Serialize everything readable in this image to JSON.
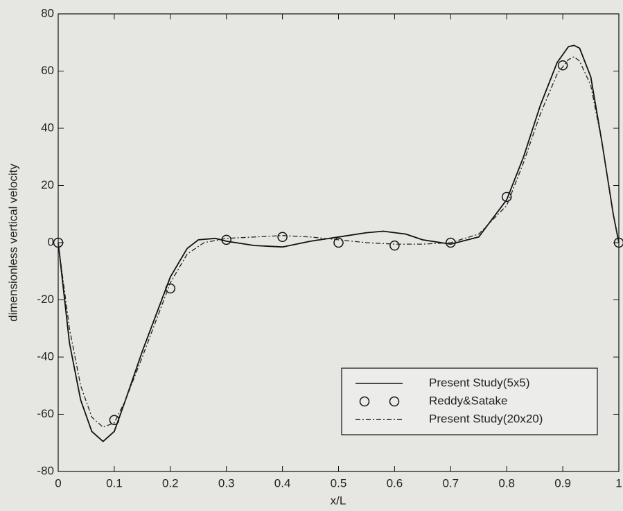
{
  "chart_data": {
    "type": "line",
    "xlabel": "x/L",
    "ylabel": "dimensionless vertical velocity",
    "xlim": [
      0,
      1
    ],
    "ylim": [
      -80,
      80
    ],
    "xticks": [
      0,
      0.1,
      0.2,
      0.3,
      0.4,
      0.5,
      0.6,
      0.7,
      0.8,
      0.9,
      1
    ],
    "yticks": [
      -80,
      -60,
      -40,
      -20,
      0,
      20,
      40,
      60,
      80
    ],
    "legend": "lower right",
    "series": [
      {
        "name": "Present Study(5x5)",
        "color": "#111111",
        "style": "solid",
        "x": [
          0,
          0.02,
          0.04,
          0.06,
          0.08,
          0.1,
          0.12,
          0.15,
          0.2,
          0.23,
          0.25,
          0.28,
          0.3,
          0.35,
          0.4,
          0.45,
          0.5,
          0.55,
          0.58,
          0.62,
          0.65,
          0.7,
          0.75,
          0.8,
          0.83,
          0.86,
          0.89,
          0.91,
          0.92,
          0.93,
          0.95,
          0.97,
          0.99,
          1
        ],
        "values": [
          0,
          -35,
          -55,
          -66,
          -69.5,
          -66,
          -55,
          -38,
          -12,
          -2,
          1,
          1.5,
          0.5,
          -1,
          -1.5,
          0.5,
          2,
          3.5,
          4,
          3,
          1,
          -0.5,
          2,
          15,
          30,
          48,
          63,
          68.5,
          69,
          68,
          58,
          35,
          10,
          0
        ]
      },
      {
        "name": "Reddy&Satake",
        "color": "#111111",
        "style": "circle",
        "x": [
          0,
          0.1,
          0.2,
          0.3,
          0.4,
          0.5,
          0.6,
          0.7,
          0.8,
          0.9,
          1
        ],
        "values": [
          0,
          -62,
          -16,
          1,
          2,
          0,
          -1,
          0,
          16,
          62,
          0
        ]
      },
      {
        "name": "Present Study(20x20)",
        "color": "#222222",
        "style": "dashdot",
        "x": [
          0,
          0.02,
          0.04,
          0.06,
          0.08,
          0.1,
          0.12,
          0.15,
          0.2,
          0.23,
          0.26,
          0.3,
          0.35,
          0.4,
          0.45,
          0.5,
          0.55,
          0.6,
          0.65,
          0.7,
          0.75,
          0.8,
          0.83,
          0.86,
          0.89,
          0.91,
          0.92,
          0.93,
          0.95,
          0.97,
          0.99,
          1
        ],
        "values": [
          0,
          -30,
          -50,
          -61,
          -64.5,
          -63,
          -55,
          -40,
          -14,
          -4,
          0,
          1.5,
          2,
          2.5,
          2,
          1,
          0,
          -0.5,
          -0.5,
          0,
          3,
          13,
          28,
          45,
          59,
          64,
          65,
          63.5,
          55,
          35,
          10,
          0
        ]
      }
    ]
  }
}
